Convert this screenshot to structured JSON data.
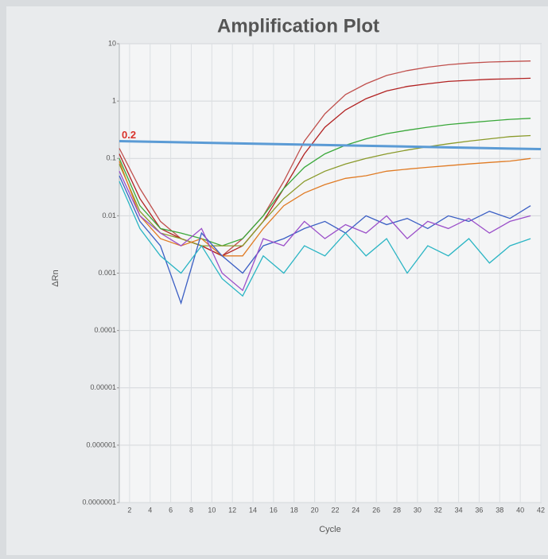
{
  "chart_data": {
    "type": "line",
    "title": "Amplification Plot",
    "ylabel": "ΔRn",
    "xlabel": "Cycle",
    "log_y": true,
    "grid": true,
    "x": [
      1,
      3,
      5,
      7,
      9,
      11,
      13,
      15,
      17,
      19,
      21,
      23,
      25,
      27,
      29,
      31,
      33,
      35,
      37,
      39,
      41
    ],
    "xlim": [
      1,
      42
    ],
    "xticks": [
      2,
      4,
      6,
      8,
      10,
      12,
      14,
      16,
      18,
      20,
      22,
      24,
      26,
      28,
      30,
      32,
      34,
      36,
      38,
      40,
      42
    ],
    "ylim": [
      1e-07,
      10
    ],
    "yticks": [
      10,
      1,
      0.1,
      0.01,
      0.001,
      0.0001,
      1e-05,
      1e-06,
      {
        "value": 1e-07,
        "label": "0.0000001"
      }
    ],
    "threshold": 0.2,
    "threshold_color": "#5b9bd5",
    "threshold_label_color": "#d9332b",
    "series": [
      {
        "color": "#c0504d",
        "values": [
          0.15,
          0.03,
          0.008,
          0.004,
          0.003,
          0.002,
          0.004,
          0.01,
          0.04,
          0.2,
          0.6,
          1.3,
          2.0,
          2.8,
          3.4,
          3.9,
          4.3,
          4.6,
          4.8,
          4.9,
          5.0
        ]
      },
      {
        "color": "#b22222",
        "values": [
          0.12,
          0.02,
          0.006,
          0.004,
          0.003,
          0.002,
          0.003,
          0.008,
          0.03,
          0.12,
          0.35,
          0.7,
          1.1,
          1.5,
          1.8,
          2.0,
          2.2,
          2.3,
          2.4,
          2.45,
          2.5
        ]
      },
      {
        "color": "#3aa83a",
        "values": [
          0.1,
          0.015,
          0.006,
          0.005,
          0.004,
          0.003,
          0.004,
          0.01,
          0.03,
          0.07,
          0.12,
          0.17,
          0.22,
          0.27,
          0.31,
          0.35,
          0.39,
          0.42,
          0.45,
          0.48,
          0.5
        ]
      },
      {
        "color": "#8a9a2a",
        "values": [
          0.08,
          0.012,
          0.005,
          0.004,
          0.003,
          0.003,
          0.003,
          0.008,
          0.02,
          0.04,
          0.06,
          0.08,
          0.1,
          0.12,
          0.14,
          0.16,
          0.18,
          0.2,
          0.22,
          0.24,
          0.25
        ]
      },
      {
        "color": "#e07b24",
        "values": [
          0.09,
          0.01,
          0.004,
          0.003,
          0.004,
          0.002,
          0.002,
          0.006,
          0.015,
          0.025,
          0.035,
          0.045,
          0.05,
          0.06,
          0.065,
          0.07,
          0.075,
          0.08,
          0.085,
          0.09,
          0.1
        ]
      },
      {
        "color": "#3b5fc4",
        "values": [
          0.05,
          0.008,
          0.003,
          0.0003,
          0.005,
          0.002,
          0.001,
          0.003,
          0.004,
          0.006,
          0.008,
          0.005,
          0.01,
          0.007,
          0.009,
          0.006,
          0.01,
          0.008,
          0.012,
          0.009,
          0.015
        ]
      },
      {
        "color": "#9b4fc9",
        "values": [
          0.06,
          0.01,
          0.005,
          0.003,
          0.006,
          0.001,
          0.0005,
          0.004,
          0.003,
          0.008,
          0.004,
          0.007,
          0.005,
          0.01,
          0.004,
          0.008,
          0.006,
          0.009,
          0.005,
          0.008,
          0.01
        ]
      },
      {
        "color": "#2bb5c4",
        "values": [
          0.04,
          0.006,
          0.002,
          0.001,
          0.003,
          0.0008,
          0.0004,
          0.002,
          0.001,
          0.003,
          0.002,
          0.005,
          0.002,
          0.004,
          0.001,
          0.003,
          0.002,
          0.004,
          0.0015,
          0.003,
          0.004
        ]
      }
    ]
  }
}
